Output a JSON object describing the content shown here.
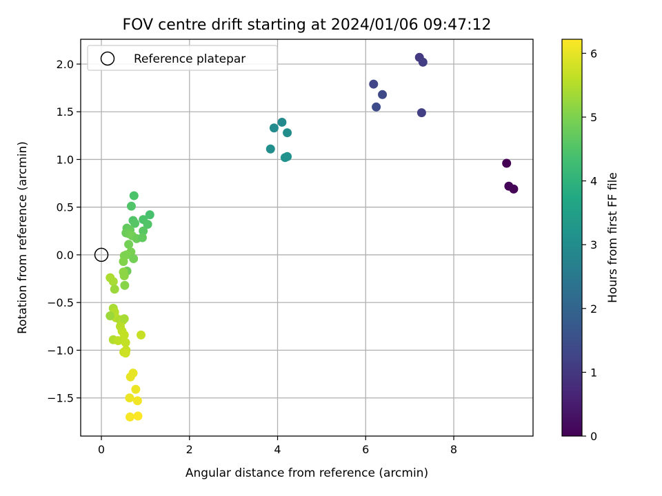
{
  "chart_data": {
    "type": "scatter",
    "title": "FOV centre drift starting at 2024/01/06 09:47:12",
    "xlabel": "Angular distance from reference (arcmin)",
    "ylabel": "Rotation from reference (arcmin)",
    "xlim": [
      -0.47,
      9.8
    ],
    "ylim": [
      -1.9,
      2.26
    ],
    "xticks": [
      0,
      2,
      4,
      6,
      8
    ],
    "xtick_labels": [
      "0",
      "2",
      "4",
      "6",
      "8"
    ],
    "yticks": [
      -1.5,
      -1.0,
      -0.5,
      0.0,
      0.5,
      1.0,
      1.5,
      2.0
    ],
    "ytick_labels": [
      "−1.5",
      "−1.0",
      "−0.5",
      "0.0",
      "0.5",
      "1.0",
      "1.5",
      "2.0"
    ],
    "grid": true,
    "colormap": "viridis",
    "colorbar": {
      "label": "Hours from first FF file",
      "range": [
        0,
        6.22
      ],
      "ticks": [
        0,
        1,
        2,
        3,
        4,
        5,
        6
      ],
      "tick_labels": [
        "0",
        "1",
        "2",
        "3",
        "4",
        "5",
        "6"
      ]
    },
    "legend": {
      "position": "top-left",
      "entries": [
        {
          "label": "Reference platepar",
          "marker": "open-circle"
        }
      ]
    },
    "reference_point": {
      "x": 0,
      "y": 0
    },
    "points": [
      {
        "x": 9.2,
        "y": 0.96,
        "h": 0.0
      },
      {
        "x": 9.25,
        "y": 0.72,
        "h": 0.05
      },
      {
        "x": 9.36,
        "y": 0.69,
        "h": 0.08
      },
      {
        "x": 7.22,
        "y": 2.07,
        "h": 1.05
      },
      {
        "x": 7.3,
        "y": 2.02,
        "h": 1.1
      },
      {
        "x": 7.27,
        "y": 1.49,
        "h": 1.15
      },
      {
        "x": 6.18,
        "y": 1.79,
        "h": 1.3
      },
      {
        "x": 6.38,
        "y": 1.68,
        "h": 1.35
      },
      {
        "x": 6.24,
        "y": 1.55,
        "h": 1.4
      },
      {
        "x": 4.1,
        "y": 1.39,
        "h": 2.9
      },
      {
        "x": 3.92,
        "y": 1.33,
        "h": 2.95
      },
      {
        "x": 4.22,
        "y": 1.28,
        "h": 3.0
      },
      {
        "x": 3.84,
        "y": 1.11,
        "h": 3.05
      },
      {
        "x": 4.22,
        "y": 1.03,
        "h": 3.1
      },
      {
        "x": 4.17,
        "y": 1.02,
        "h": 3.15
      },
      {
        "x": 0.74,
        "y": 0.62,
        "h": 4.45
      },
      {
        "x": 0.68,
        "y": 0.51,
        "h": 4.5
      },
      {
        "x": 1.1,
        "y": 0.42,
        "h": 4.4
      },
      {
        "x": 0.95,
        "y": 0.37,
        "h": 4.45
      },
      {
        "x": 0.72,
        "y": 0.36,
        "h": 4.5
      },
      {
        "x": 0.76,
        "y": 0.33,
        "h": 4.55
      },
      {
        "x": 1.05,
        "y": 0.32,
        "h": 4.5
      },
      {
        "x": 0.58,
        "y": 0.28,
        "h": 4.7
      },
      {
        "x": 0.65,
        "y": 0.26,
        "h": 4.75
      },
      {
        "x": 0.95,
        "y": 0.25,
        "h": 4.6
      },
      {
        "x": 0.56,
        "y": 0.23,
        "h": 4.8
      },
      {
        "x": 0.63,
        "y": 0.22,
        "h": 4.85
      },
      {
        "x": 0.7,
        "y": 0.2,
        "h": 4.9
      },
      {
        "x": 0.8,
        "y": 0.17,
        "h": 4.8
      },
      {
        "x": 0.93,
        "y": 0.18,
        "h": 4.7
      },
      {
        "x": 0.62,
        "y": 0.11,
        "h": 4.9
      },
      {
        "x": 0.67,
        "y": 0.03,
        "h": 4.95
      },
      {
        "x": 0.52,
        "y": -0.01,
        "h": 5.0
      },
      {
        "x": 0.57,
        "y": 0.0,
        "h": 5.0
      },
      {
        "x": 0.73,
        "y": -0.04,
        "h": 4.9
      },
      {
        "x": 0.5,
        "y": -0.07,
        "h": 5.05
      },
      {
        "x": 0.58,
        "y": -0.17,
        "h": 4.85
      },
      {
        "x": 0.5,
        "y": -0.18,
        "h": 5.15
      },
      {
        "x": 0.52,
        "y": -0.22,
        "h": 5.15
      },
      {
        "x": 0.2,
        "y": -0.24,
        "h": 5.45
      },
      {
        "x": 0.27,
        "y": -0.28,
        "h": 5.4
      },
      {
        "x": 0.53,
        "y": -0.32,
        "h": 5.1
      },
      {
        "x": 0.3,
        "y": -0.36,
        "h": 5.3
      },
      {
        "x": 0.27,
        "y": -0.56,
        "h": 5.4
      },
      {
        "x": 0.3,
        "y": -0.6,
        "h": 5.5
      },
      {
        "x": 0.33,
        "y": -0.66,
        "h": 5.55
      },
      {
        "x": 0.2,
        "y": -0.64,
        "h": 5.3
      },
      {
        "x": 0.42,
        "y": -0.68,
        "h": 5.45
      },
      {
        "x": 0.48,
        "y": -0.69,
        "h": 5.5
      },
      {
        "x": 0.52,
        "y": -0.67,
        "h": 5.4
      },
      {
        "x": 0.43,
        "y": -0.75,
        "h": 5.55
      },
      {
        "x": 0.47,
        "y": -0.8,
        "h": 5.6
      },
      {
        "x": 0.52,
        "y": -0.84,
        "h": 5.65
      },
      {
        "x": 0.9,
        "y": -0.84,
        "h": 5.7
      },
      {
        "x": 0.27,
        "y": -0.89,
        "h": 5.5
      },
      {
        "x": 0.38,
        "y": -0.9,
        "h": 5.6
      },
      {
        "x": 0.55,
        "y": -0.92,
        "h": 5.65
      },
      {
        "x": 0.51,
        "y": -1.02,
        "h": 5.7
      },
      {
        "x": 0.56,
        "y": -1.0,
        "h": 5.7
      },
      {
        "x": 0.55,
        "y": -1.03,
        "h": 5.75
      },
      {
        "x": 0.72,
        "y": -1.24,
        "h": 6.0
      },
      {
        "x": 0.66,
        "y": -1.28,
        "h": 6.0
      },
      {
        "x": 0.78,
        "y": -1.41,
        "h": 6.05
      },
      {
        "x": 0.64,
        "y": -1.5,
        "h": 6.05
      },
      {
        "x": 0.82,
        "y": -1.53,
        "h": 6.1
      },
      {
        "x": 0.65,
        "y": -1.7,
        "h": 6.15
      },
      {
        "x": 0.83,
        "y": -1.69,
        "h": 6.2
      }
    ]
  }
}
